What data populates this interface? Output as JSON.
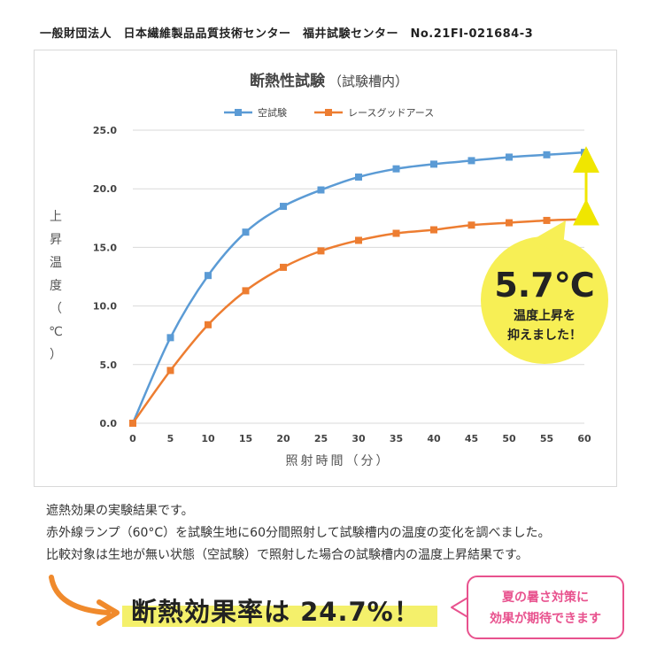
{
  "header": "一般財団法人　日本繊維製品品質技術センター　福井試験センター　No.21FI-021684-3",
  "chart_data": {
    "type": "line",
    "title": "断熱性試験",
    "title_note": "（試験槽内）",
    "xlabel": "照射時間（分）",
    "ylabel": "上昇温度（℃）",
    "ylabel_chars": [
      "上",
      "昇",
      "温",
      "度",
      "（",
      "℃",
      "）"
    ],
    "x": [
      0,
      5,
      10,
      15,
      20,
      25,
      30,
      35,
      40,
      45,
      50,
      55,
      60
    ],
    "ylim": [
      0,
      25
    ],
    "yticks": [
      "0.0",
      "5.0",
      "10.0",
      "15.0",
      "20.0",
      "25.0"
    ],
    "grid": "horizontal",
    "legend_position": "top",
    "series": [
      {
        "name": "空試験",
        "color": "#5b9bd5",
        "values": [
          0,
          7.3,
          12.6,
          16.3,
          18.5,
          19.9,
          21.0,
          21.7,
          22.1,
          22.4,
          22.7,
          22.9,
          23.1
        ]
      },
      {
        "name": "レースグッドアース",
        "color": "#ed7d31",
        "values": [
          0,
          4.5,
          8.4,
          11.3,
          13.3,
          14.7,
          15.6,
          16.2,
          16.5,
          16.9,
          17.1,
          17.3,
          17.4
        ]
      }
    ],
    "annotation": {
      "value": "5.7℃",
      "line1": "温度上昇を",
      "line2": "抑えました！",
      "color": "#f7ef55",
      "arrow_color": "#f0e600"
    }
  },
  "description": [
    "遮熱効果の実験結果です。",
    "赤外線ランプ（60°C）を試験生地に60分間照射して試験槽内の温度の変化を調べました。",
    "比較対象は生地が無い状態（空試験）で照射した場合の試験槽内の温度上昇結果です。"
  ],
  "headline": "断熱効果率は 24.7%！",
  "headline_color": "#f4f06b",
  "bubble": {
    "line1": "夏の暑さ対策に",
    "line2": "効果が期待できます",
    "color": "#e8528e"
  },
  "arrow_color": "#f08a2c"
}
